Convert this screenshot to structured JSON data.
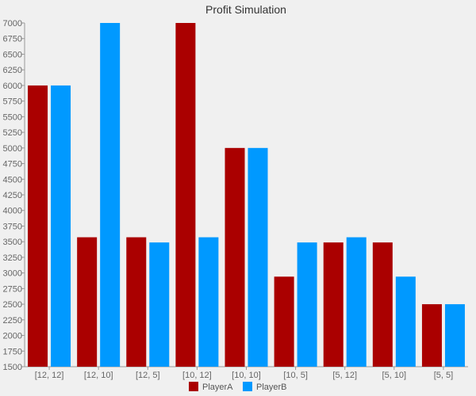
{
  "chart_data": {
    "type": "bar",
    "title": "Profit Simulation",
    "xlabel": "",
    "ylabel": "",
    "categories": [
      "[12, 12]",
      "[12, 10]",
      "[12, 5]",
      "[10, 12]",
      "[10, 10]",
      "[10, 5]",
      "[5, 12]",
      "[5, 10]",
      "[5, 5]"
    ],
    "series": [
      {
        "name": "PlayerA",
        "color": "#aa0000",
        "values": [
          6000,
          3571,
          3571,
          7000,
          5000,
          2941,
          3488,
          3488,
          2500
        ]
      },
      {
        "name": "PlayerB",
        "color": "#0099ff",
        "values": [
          6000,
          7000,
          3488,
          3571,
          5000,
          3488,
          3571,
          2941,
          2500
        ]
      }
    ],
    "ylim": [
      1500,
      7000
    ],
    "yticks": [
      "1500",
      "1750",
      "2000",
      "2250",
      "2500",
      "2750",
      "3000",
      "3250",
      "3500",
      "3750",
      "4000",
      "4250",
      "4500",
      "4750",
      "5000",
      "5250",
      "5500",
      "5750",
      "6000",
      "6250",
      "6500",
      "6750",
      "7000"
    ],
    "grid": false,
    "legend_position": "bottom"
  }
}
